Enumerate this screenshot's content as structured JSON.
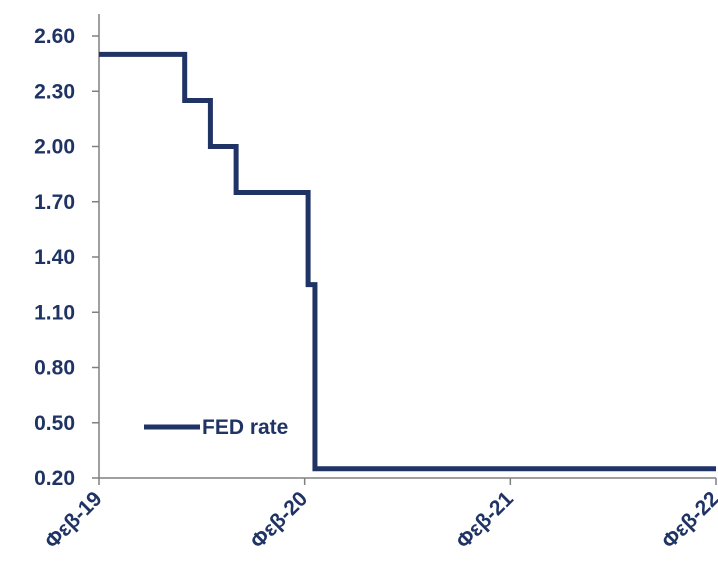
{
  "chart_data": {
    "type": "line",
    "title": "",
    "xlabel": "",
    "ylabel": "",
    "ylim": [
      0.2,
      2.6
    ],
    "y_ticks": [
      "0.20",
      "0.50",
      "0.80",
      "1.10",
      "1.40",
      "1.70",
      "2.00",
      "2.30",
      "2.60"
    ],
    "x_tick_labels": [
      "Φεβ-19",
      "Φεβ-20",
      "Φεβ-21",
      "Φεβ-22"
    ],
    "x_range_months": [
      0,
      36
    ],
    "grid": false,
    "legend": {
      "position": "lower-left"
    },
    "series": [
      {
        "name": "FED rate",
        "color": "#1f3364",
        "step": true,
        "points": [
          {
            "x": 0,
            "y": 2.5
          },
          {
            "x": 5,
            "y": 2.25
          },
          {
            "x": 6.5,
            "y": 2.0
          },
          {
            "x": 8,
            "y": 1.75
          },
          {
            "x": 12.2,
            "y": 1.25
          },
          {
            "x": 12.6,
            "y": 0.25
          },
          {
            "x": 36,
            "y": 0.25
          }
        ]
      }
    ]
  }
}
